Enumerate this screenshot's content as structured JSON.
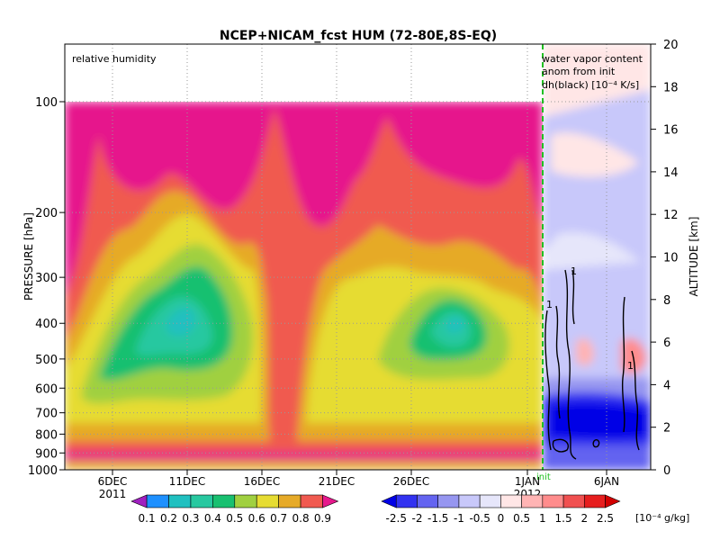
{
  "chart_data": {
    "type": "heatmap",
    "title": "NCEP+NICAM_fcst HUM (72-80E,8S-EQ)",
    "left_panel": {
      "label": "relative humidity",
      "ylabel": "PRESSURE [hPa]",
      "pressure_ticks": [
        "100",
        "200",
        "300",
        "400",
        "500",
        "600",
        "700",
        "800",
        "900",
        "1000"
      ],
      "date_ticks": [
        {
          "day": "6DEC",
          "year": "2011"
        },
        {
          "day": "11DEC",
          "year": ""
        },
        {
          "day": "16DEC",
          "year": ""
        },
        {
          "day": "21DEC",
          "year": ""
        },
        {
          "day": "26DEC",
          "year": ""
        },
        {
          "day": "1JAN",
          "year": "2012"
        }
      ],
      "init_marker": "init"
    },
    "right_panel": {
      "label_lines": [
        "water vapor content",
        "anom from init",
        "dh(black) [10⁻⁴ K/s]"
      ],
      "ylabel": "ALTITUDE [km]",
      "altitude_ticks": [
        "0",
        "2",
        "4",
        "6",
        "8",
        "10",
        "12",
        "14",
        "16",
        "18",
        "20"
      ],
      "date_ticks": [
        {
          "day": "6JAN",
          "year": ""
        }
      ],
      "contour_labels": [
        "1",
        "1",
        "1"
      ]
    },
    "colorbar_rh": {
      "labels": [
        "0.1",
        "0.2",
        "0.3",
        "0.4",
        "0.5",
        "0.6",
        "0.7",
        "0.8",
        "0.9"
      ],
      "colors": [
        "#a020c0",
        "#1e90ff",
        "#20c0c0",
        "#28c8a0",
        "#18c070",
        "#a0d040",
        "#e6dc32",
        "#e6aa28",
        "#f05a50",
        "#e6198c"
      ]
    },
    "colorbar_anom": {
      "labels": [
        "-2.5",
        "-2",
        "-1.5",
        "-1",
        "-0.5",
        "0",
        "0.5",
        "1",
        "1.5",
        "2",
        "2.5"
      ],
      "unit": "[10⁻⁴ g/kg]",
      "colors": [
        "#0000e6",
        "#3232f0",
        "#6464f0",
        "#9696f0",
        "#c8c8fa",
        "#e6e6fa",
        "#ffe6e6",
        "#ffb4b4",
        "#ff8c8c",
        "#f05050",
        "#e61e1e",
        "#d20000"
      ]
    }
  }
}
